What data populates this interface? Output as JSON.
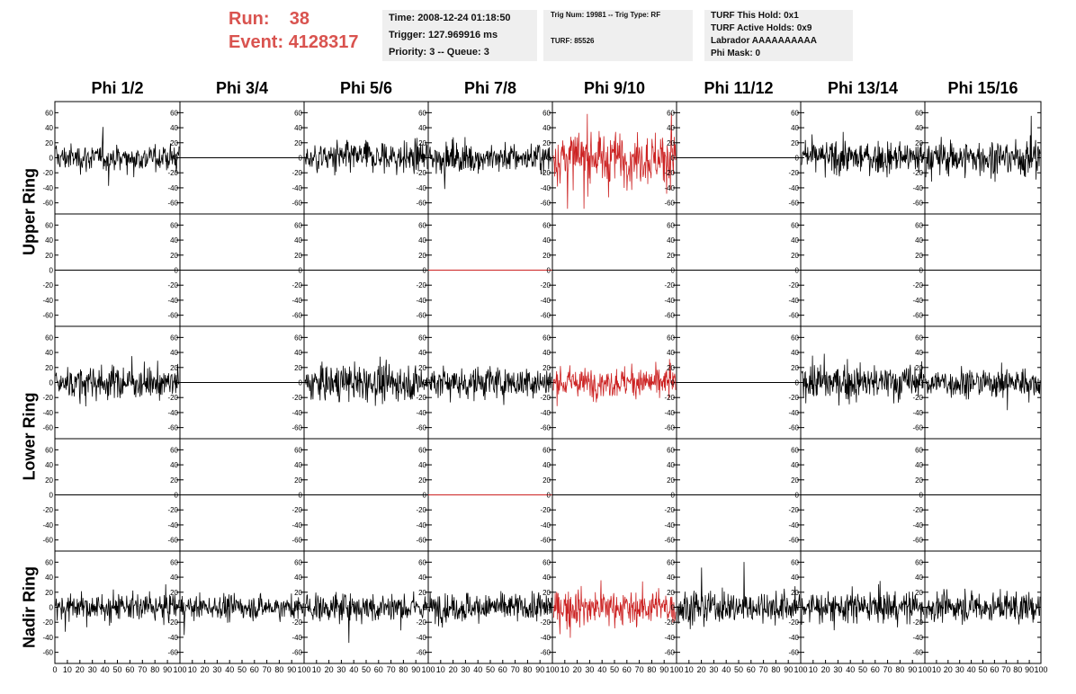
{
  "header": {
    "run_label": "Run:",
    "run_value": "38",
    "event_label": "Event:",
    "event_value": "4128317",
    "time": "Time: 2008-12-24 01:18:50",
    "trigger": "Trigger: 127.969916 ms",
    "priority": "Priority: 3 -- Queue: 3",
    "trig_num": "Trig Num: 19981 -- Trig Type: RF",
    "turf": "TURF: 85526",
    "turf_this_hold": "TURF This Hold: 0x1",
    "turf_active_holds": "TURF Active Holds: 0x9",
    "labrador": "Labrador AAAAAAAAAA",
    "phi_mask": "Phi Mask: 0"
  },
  "row_labels": [
    "Upper Ring",
    "Lower Ring",
    "Nadir Ring"
  ],
  "colors": {
    "normal": "#000000",
    "triggered": "#cc2222",
    "header_text": "#d9534f",
    "info_bg": "#efefef"
  },
  "chart_data": {
    "type": "line",
    "columns": [
      "Phi 1/2",
      "Phi 3/4",
      "Phi 5/6",
      "Phi 7/8",
      "Phi 9/10",
      "Phi 11/12",
      "Phi 13/14",
      "Phi 15/16"
    ],
    "panel_rows": 5,
    "ylim": [
      -70,
      70
    ],
    "yticks": [
      -60,
      -40,
      -20,
      0,
      20,
      40,
      60
    ],
    "xlim": [
      0,
      100
    ],
    "xticks": [
      0,
      10,
      20,
      30,
      40,
      50,
      60,
      70,
      80,
      90,
      100
    ],
    "xtick_labels_first": [
      "0",
      "10",
      "20",
      "30",
      "40",
      "50",
      "60",
      "70",
      "80",
      "90",
      "100"
    ],
    "xtick_labels_rest": [
      "10",
      "20",
      "30",
      "40",
      "50",
      "60",
      "70",
      "80",
      "90",
      "100"
    ],
    "samples_per_trace": 260,
    "panels": [
      [
        "noise",
        "flat",
        "noise",
        "noise",
        "noise-red",
        "flat",
        "noise",
        "noise"
      ],
      [
        "flat",
        "flat",
        "flat",
        "flat-red",
        "flat",
        "flat",
        "flat",
        "flat"
      ],
      [
        "noise",
        "flat",
        "noise",
        "noise",
        "noise-red",
        "flat",
        "noise",
        "noise"
      ],
      [
        "flat",
        "flat",
        "flat",
        "flat-red",
        "flat",
        "flat",
        "flat",
        "flat"
      ],
      [
        "noise",
        "noise",
        "noise",
        "noise",
        "noise-red",
        "noise",
        "noise",
        "noise"
      ]
    ],
    "noise_rms": [
      [
        9,
        0,
        11,
        10,
        18,
        0,
        11,
        12
      ],
      [
        0,
        0,
        0,
        0,
        0,
        0,
        0,
        0
      ],
      [
        11,
        0,
        12,
        11,
        10,
        0,
        12,
        10
      ],
      [
        0,
        0,
        0,
        0,
        0,
        0,
        0,
        0
      ],
      [
        9,
        8,
        10,
        10,
        12,
        11,
        11,
        10
      ]
    ]
  }
}
